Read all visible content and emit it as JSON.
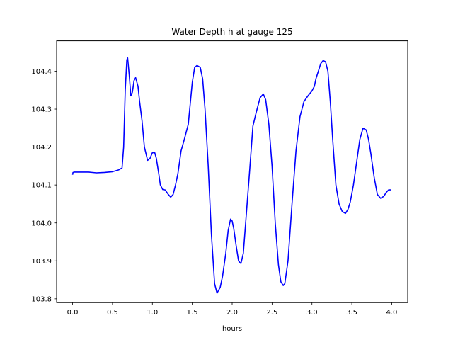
{
  "chart_data": {
    "type": "line",
    "title": "Water Depth h at gauge 125",
    "xlabel": "hours",
    "ylabel": "",
    "xlim": [
      -0.2,
      4.2
    ],
    "ylim": [
      103.79,
      104.48
    ],
    "xticks": [
      0.0,
      0.5,
      1.0,
      1.5,
      2.0,
      2.5,
      3.0,
      3.5,
      4.0
    ],
    "xtick_labels": [
      "0.0",
      "0.5",
      "1.0",
      "1.5",
      "2.0",
      "2.5",
      "3.0",
      "3.5",
      "4.0"
    ],
    "yticks": [
      103.8,
      103.9,
      104.0,
      104.1,
      104.2,
      104.3,
      104.4
    ],
    "ytick_labels": [
      "103.8",
      "103.9",
      "104.0",
      "104.1",
      "104.2",
      "104.3",
      "104.4"
    ],
    "grid": false,
    "series": [
      {
        "color": "#0000ff",
        "x": [
          0.0,
          0.005,
          0.02,
          0.1,
          0.2,
          0.3,
          0.4,
          0.5,
          0.58,
          0.62,
          0.64,
          0.66,
          0.68,
          0.69,
          0.71,
          0.73,
          0.75,
          0.77,
          0.79,
          0.82,
          0.84,
          0.87,
          0.9,
          0.94,
          0.97,
          1.0,
          1.03,
          1.05,
          1.08,
          1.1,
          1.13,
          1.16,
          1.2,
          1.23,
          1.26,
          1.29,
          1.32,
          1.36,
          1.4,
          1.45,
          1.5,
          1.53,
          1.56,
          1.6,
          1.63,
          1.66,
          1.7,
          1.74,
          1.78,
          1.81,
          1.85,
          1.88,
          1.92,
          1.95,
          1.98,
          2.0,
          2.02,
          2.05,
          2.08,
          2.11,
          2.14,
          2.18,
          2.22,
          2.26,
          2.3,
          2.35,
          2.39,
          2.42,
          2.46,
          2.5,
          2.54,
          2.58,
          2.61,
          2.64,
          2.66,
          2.7,
          2.75,
          2.8,
          2.85,
          2.9,
          2.95,
          3.0,
          3.03,
          3.05,
          3.08,
          3.11,
          3.14,
          3.17,
          3.2,
          3.23,
          3.26,
          3.3,
          3.34,
          3.38,
          3.42,
          3.45,
          3.48,
          3.52,
          3.56,
          3.6,
          3.64,
          3.68,
          3.71,
          3.74,
          3.78,
          3.82,
          3.86,
          3.9,
          3.93,
          3.96,
          3.99
        ],
        "y": [
          104.127,
          104.133,
          104.134,
          104.134,
          104.134,
          104.132,
          104.133,
          104.135,
          104.14,
          104.145,
          104.2,
          104.35,
          104.43,
          104.435,
          104.39,
          104.335,
          104.345,
          104.375,
          104.383,
          104.36,
          104.32,
          104.27,
          104.2,
          104.165,
          104.17,
          104.185,
          104.185,
          104.17,
          104.13,
          104.1,
          104.088,
          104.087,
          104.075,
          104.068,
          104.075,
          104.1,
          104.13,
          104.19,
          104.22,
          104.26,
          104.37,
          104.41,
          104.415,
          104.41,
          104.38,
          104.3,
          104.15,
          103.97,
          103.84,
          103.815,
          103.83,
          103.86,
          103.92,
          103.98,
          104.01,
          104.005,
          103.985,
          103.94,
          103.9,
          103.893,
          103.92,
          104.03,
          104.14,
          104.255,
          104.29,
          104.33,
          104.34,
          104.325,
          104.26,
          104.15,
          104.0,
          103.89,
          103.845,
          103.835,
          103.84,
          103.9,
          104.05,
          104.19,
          104.28,
          104.32,
          104.335,
          104.348,
          104.36,
          104.38,
          104.4,
          104.42,
          104.428,
          104.425,
          104.4,
          104.32,
          104.22,
          104.1,
          104.05,
          104.03,
          104.025,
          104.035,
          104.055,
          104.1,
          104.16,
          104.22,
          104.25,
          104.245,
          104.22,
          104.18,
          104.12,
          104.075,
          104.065,
          104.07,
          104.08,
          104.087,
          104.087
        ]
      }
    ]
  }
}
